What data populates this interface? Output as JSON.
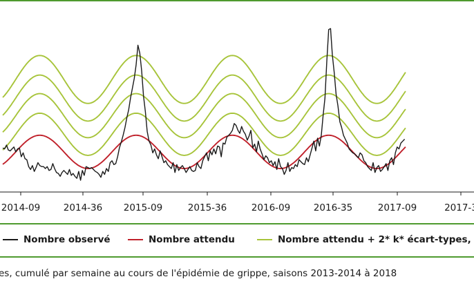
{
  "chart_data": {
    "type": "line",
    "x_tick_labels": [
      "2014-09",
      "2014-36",
      "2015-09",
      "2015-36",
      "2016-09",
      "2016-35",
      "2017-09",
      "2017-3"
    ],
    "xlabel": "",
    "ylabel": "",
    "grid": false,
    "legend_position": "bottom",
    "legend": [
      {
        "label": "Nombre observé",
        "color": "#1a1a1a"
      },
      {
        "label": "Nombre attendu",
        "color": "#c0202a"
      },
      {
        "label": "Nombre attendu + 2* k* écart-types,",
        "color": "#a7c43a"
      }
    ],
    "series": [
      {
        "name": "Nombre observé",
        "color": "#1a1a1a",
        "values": [
          0.45,
          0.44,
          0.48,
          0.43,
          0.42,
          0.44,
          0.46,
          0.41,
          0.44,
          0.45,
          0.36,
          0.4,
          0.34,
          0.33,
          0.26,
          0.23,
          0.27,
          0.21,
          0.25,
          0.3,
          0.27,
          0.26,
          0.26,
          0.24,
          0.26,
          0.22,
          0.23,
          0.29,
          0.24,
          0.2,
          0.19,
          0.16,
          0.2,
          0.22,
          0.2,
          0.18,
          0.23,
          0.17,
          0.19,
          0.16,
          0.14,
          0.21,
          0.12,
          0.22,
          0.17,
          0.26,
          0.25,
          0.24,
          0.25,
          0.23,
          0.21,
          0.2,
          0.18,
          0.15,
          0.21,
          0.18,
          0.24,
          0.21,
          0.3,
          0.32,
          0.28,
          0.29,
          0.36,
          0.45,
          0.51,
          0.58,
          0.66,
          0.76,
          0.84,
          0.96,
          1.06,
          1.16,
          1.3,
          1.5,
          1.42,
          1.24,
          0.98,
          0.82,
          0.62,
          0.52,
          0.48,
          0.4,
          0.44,
          0.38,
          0.34,
          0.42,
          0.36,
          0.3,
          0.32,
          0.28,
          0.26,
          0.24,
          0.3,
          0.2,
          0.28,
          0.22,
          0.25,
          0.27,
          0.24,
          0.2,
          0.23,
          0.26,
          0.22,
          0.21,
          0.22,
          0.3,
          0.26,
          0.24,
          0.32,
          0.36,
          0.4,
          0.32,
          0.42,
          0.38,
          0.44,
          0.39,
          0.47,
          0.46,
          0.36,
          0.5,
          0.49,
          0.56,
          0.58,
          0.6,
          0.63,
          0.7,
          0.68,
          0.63,
          0.6,
          0.67,
          0.62,
          0.59,
          0.53,
          0.57,
          0.63,
          0.45,
          0.49,
          0.41,
          0.52,
          0.44,
          0.39,
          0.33,
          0.37,
          0.35,
          0.3,
          0.32,
          0.27,
          0.31,
          0.23,
          0.34,
          0.26,
          0.24,
          0.18,
          0.22,
          0.3,
          0.21,
          0.25,
          0.24,
          0.28,
          0.26,
          0.33,
          0.31,
          0.29,
          0.28,
          0.35,
          0.31,
          0.38,
          0.45,
          0.52,
          0.42,
          0.55,
          0.47,
          0.58,
          0.78,
          0.96,
          1.34,
          1.66,
          1.67,
          1.4,
          1.22,
          1.0,
          0.88,
          0.72,
          0.66,
          0.58,
          0.54,
          0.5,
          0.44,
          0.42,
          0.4,
          0.39,
          0.37,
          0.35,
          0.4,
          0.38,
          0.32,
          0.3,
          0.26,
          0.24,
          0.22,
          0.3,
          0.2,
          0.25,
          0.27,
          0.21,
          0.23,
          0.26,
          0.29,
          0.22,
          0.32,
          0.35,
          0.28,
          0.4,
          0.46,
          0.44,
          0.5,
          0.52,
          0.54
        ]
      },
      {
        "name": "Nombre attendu",
        "color": "#c0202a",
        "mean": 0.41,
        "amplitude": 0.17,
        "period_weeks": 52,
        "peak_week": 20
      },
      {
        "name": "Nombre attendu + 2* k* écart-types, (1)",
        "color": "#a7c43a",
        "mean": 0.59,
        "amplitude": 0.215,
        "period_weeks": 52,
        "peak_week": 20
      },
      {
        "name": "Nombre attendu + 2* k* écart-types, (2)",
        "color": "#a7c43a",
        "mean": 0.78,
        "amplitude": 0.225,
        "period_weeks": 52,
        "peak_week": 20
      },
      {
        "name": "Nombre attendu + 2* k* écart-types, (3)",
        "color": "#a7c43a",
        "mean": 0.96,
        "amplitude": 0.235,
        "period_weeks": 52,
        "peak_week": 20
      },
      {
        "name": "Nombre attendu + 2* k* écart-types, (4)",
        "color": "#a7c43a",
        "mean": 1.15,
        "amplitude": 0.245,
        "period_weeks": 52,
        "peak_week": 20
      }
    ],
    "ylim": [
      0,
      1.75
    ]
  },
  "caption": "es, cumulé par semaine au cours de l'épidémie de grippe, saisons 2013-2014 à 2018"
}
